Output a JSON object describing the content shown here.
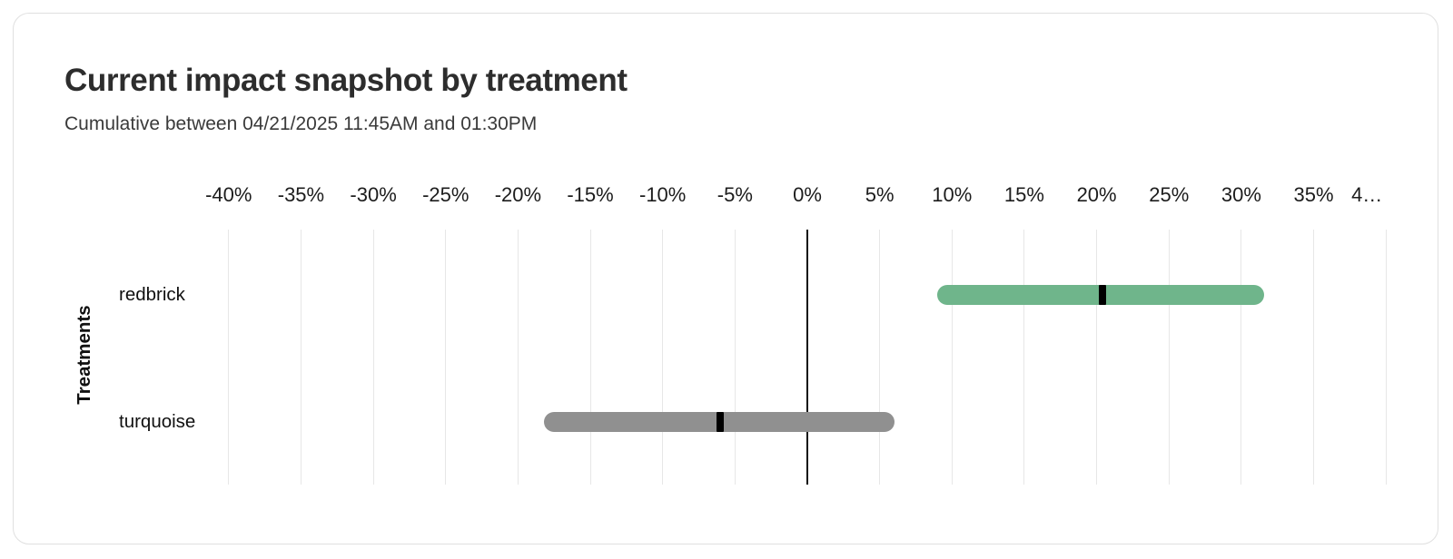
{
  "header": {
    "title": "Current impact snapshot by treatment",
    "subtitle": "Cumulative between 04/21/2025 11:45AM and 01:30PM"
  },
  "chart_data": {
    "type": "bar",
    "subtype": "horizontal_range_interval",
    "title": "Current impact snapshot by treatment",
    "subtitle": "Cumulative between 04/21/2025 11:45AM and 01:30PM",
    "xlabel": "",
    "ylabel": "Treatments",
    "xlim": [
      -40,
      40
    ],
    "x_tick_step": 5,
    "x_tick_unit": "%",
    "x_tick_labels": [
      "-40%",
      "-35%",
      "-30%",
      "-25%",
      "-20%",
      "-15%",
      "-10%",
      "-5%",
      "0%",
      "5%",
      "10%",
      "15%",
      "20%",
      "25%",
      "30%",
      "35%",
      "4…"
    ],
    "grid": "vertical",
    "zero_line": true,
    "legend": "none",
    "categories": [
      "redbrick",
      "turquoise"
    ],
    "series": [
      {
        "name": "redbrick",
        "low": 9.0,
        "mid": 20.4,
        "high": 31.6,
        "color": "#6FB58B",
        "marker_color": "#000000"
      },
      {
        "name": "turquoise",
        "low": -18.2,
        "mid": -6.0,
        "high": 6.0,
        "color": "#909090",
        "marker_color": "#000000"
      }
    ]
  },
  "colors": {
    "card_border": "#e0e0e0",
    "gridline": "#e7e7e7",
    "zero_line": "#111111",
    "title_text": "#2d2d2d",
    "subtitle_text": "#3a3a3a",
    "tick_text": "#1c1c1c"
  }
}
